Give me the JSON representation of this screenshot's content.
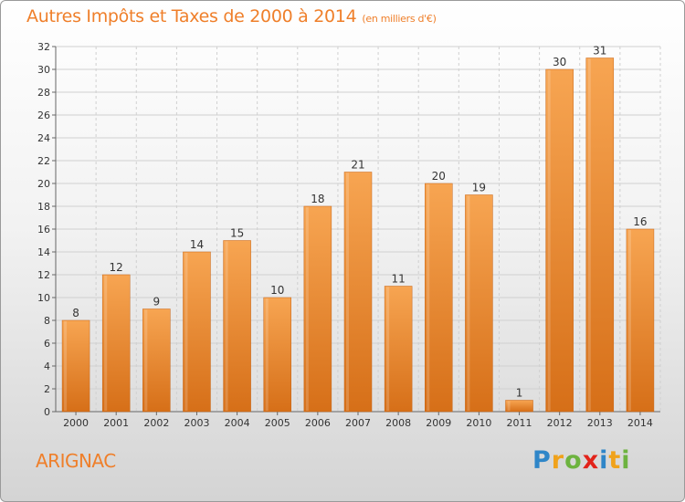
{
  "title": "Autres Impôts et Taxes de 2000 à 2014",
  "subtitle": "(en milliers d'€)",
  "commune": "ARIGNAC",
  "logo": {
    "p": "P",
    "r": "r",
    "o": "o",
    "x": "x",
    "i": "i",
    "t": "t",
    "i2": "i"
  },
  "colors": {
    "bar_light": "#f6a24f",
    "bar_dark": "#d9731b",
    "title": "#ef7f2a"
  },
  "chart_data": {
    "type": "bar",
    "categories": [
      "2000",
      "2001",
      "2002",
      "2003",
      "2004",
      "2005",
      "2006",
      "2007",
      "2008",
      "2009",
      "2010",
      "2011",
      "2012",
      "2013",
      "2014"
    ],
    "values": [
      8,
      12,
      9,
      14,
      15,
      10,
      18,
      21,
      11,
      20,
      19,
      1,
      30,
      31,
      16
    ],
    "title": "Autres Impôts et Taxes de 2000 à 2014",
    "xlabel": "",
    "ylabel": "",
    "ylim": [
      0,
      32
    ],
    "yticks": [
      0,
      2,
      4,
      6,
      8,
      10,
      12,
      14,
      16,
      18,
      20,
      22,
      24,
      26,
      28,
      30,
      32
    ],
    "grid": true
  }
}
